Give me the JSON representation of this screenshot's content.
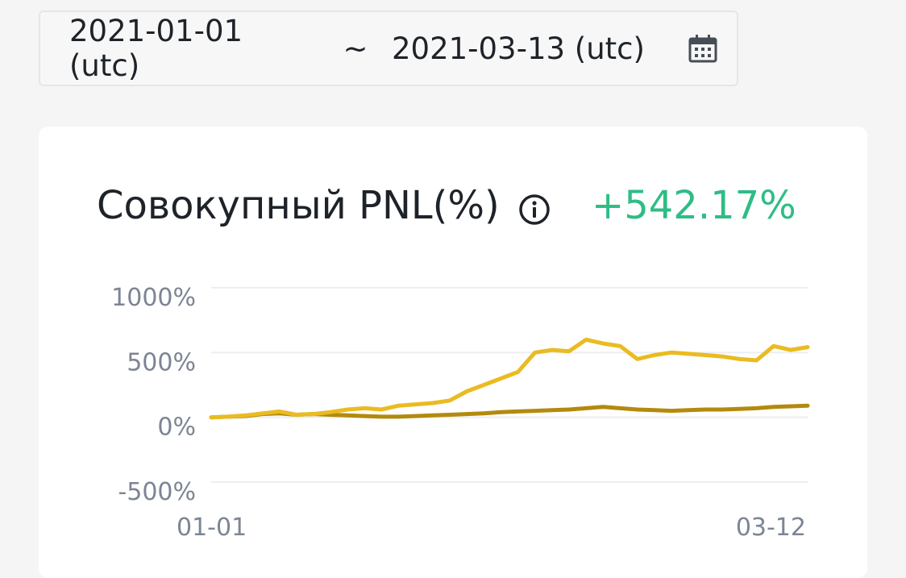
{
  "date_range": {
    "start": "2021-01-01 (utc)",
    "separator": "~",
    "end": "2021-03-13 (utc)",
    "icon": "calendar-icon"
  },
  "header": {
    "title": "Совокупный PNL(%)",
    "info_icon": "info-icon",
    "pnl_value": "+542.17%"
  },
  "colors": {
    "primary_series": "#eabb22",
    "secondary_series": "#b38a0e",
    "positive": "#2ebd85",
    "axis_text": "#7c8594",
    "grid": "#eceef1"
  },
  "chart_data": {
    "type": "line",
    "ylim": [
      -500,
      1000
    ],
    "yticks": [
      1000,
      500,
      0,
      -500
    ],
    "ytick_labels": [
      "1000%",
      "500%",
      "0%",
      "-500%"
    ],
    "xlim": [
      "2021-01-01",
      "2021-03-12"
    ],
    "xtick_labels": [
      "01-01",
      "03-12"
    ],
    "grid": true,
    "x": [
      "2021-01-01",
      "2021-01-03",
      "2021-01-05",
      "2021-01-07",
      "2021-01-09",
      "2021-01-11",
      "2021-01-13",
      "2021-01-15",
      "2021-01-17",
      "2021-01-19",
      "2021-01-21",
      "2021-01-23",
      "2021-01-25",
      "2021-01-27",
      "2021-01-29",
      "2021-01-31",
      "2021-02-02",
      "2021-02-04",
      "2021-02-06",
      "2021-02-08",
      "2021-02-10",
      "2021-02-12",
      "2021-02-14",
      "2021-02-16",
      "2021-02-18",
      "2021-02-20",
      "2021-02-22",
      "2021-02-24",
      "2021-02-26",
      "2021-02-28",
      "2021-03-02",
      "2021-03-04",
      "2021-03-06",
      "2021-03-08",
      "2021-03-10",
      "2021-03-12"
    ],
    "series": [
      {
        "values": [
          0,
          5,
          15,
          30,
          45,
          20,
          25,
          40,
          60,
          70,
          60,
          90,
          100,
          110,
          130,
          200,
          250,
          300,
          350,
          500,
          520,
          510,
          600,
          570,
          550,
          450,
          480,
          500,
          490,
          480,
          470,
          450,
          440,
          550,
          520,
          542
        ]
      },
      {
        "values": [
          0,
          5,
          10,
          25,
          30,
          20,
          25,
          20,
          15,
          10,
          5,
          5,
          10,
          15,
          20,
          25,
          30,
          40,
          45,
          50,
          55,
          60,
          70,
          80,
          70,
          60,
          55,
          50,
          55,
          60,
          60,
          65,
          70,
          80,
          85,
          90
        ]
      }
    ]
  }
}
